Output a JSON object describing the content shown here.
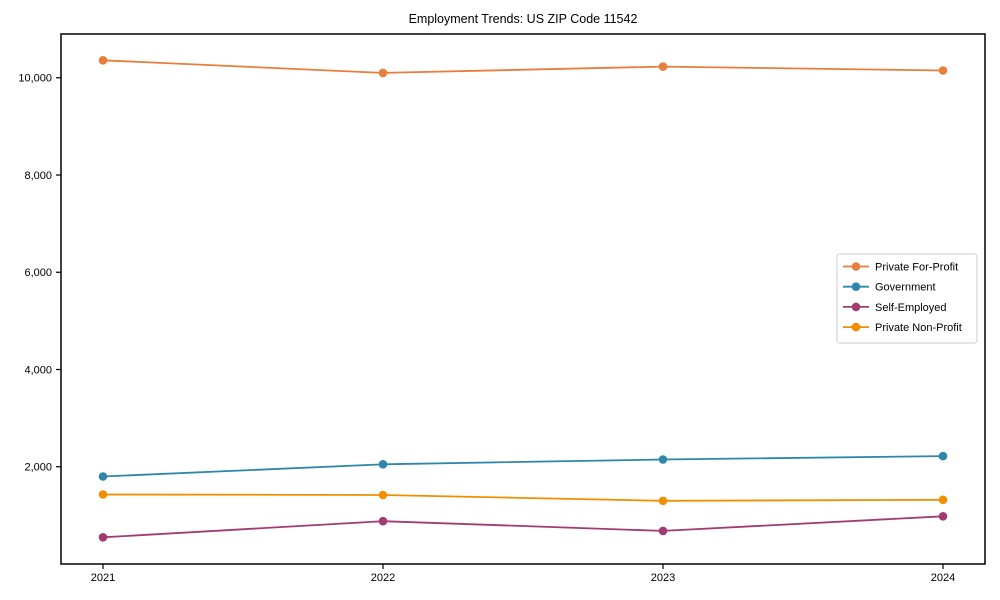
{
  "title": "Employment Trends: US ZIP Code 11542",
  "chart_data": {
    "type": "line",
    "title": "Employment Trends: US ZIP Code 11542",
    "xlabel": "",
    "ylabel": "",
    "categories": [
      "2021",
      "2022",
      "2023",
      "2024"
    ],
    "series": [
      {
        "name": "Private For-Profit",
        "color": "#e87d3c",
        "values": [
          10360,
          10100,
          10230,
          10150
        ]
      },
      {
        "name": "Government",
        "color": "#2e86ab",
        "values": [
          1800,
          2050,
          2150,
          2220
        ]
      },
      {
        "name": "Self-Employed",
        "color": "#a23b72",
        "values": [
          550,
          880,
          680,
          980
        ]
      },
      {
        "name": "Private Non-Profit",
        "color": "#f18f01",
        "values": [
          1430,
          1420,
          1300,
          1320
        ]
      }
    ],
    "ylim": [
      0,
      10900
    ],
    "y_ticks": [
      2000,
      4000,
      6000,
      8000,
      10000
    ],
    "y_tick_labels": [
      "2,000",
      "4,000",
      "6,000",
      "8,000",
      "10,000"
    ],
    "grid": false,
    "legend_position": "center right",
    "marker": "circle"
  },
  "colors": {
    "background": "#ffffff",
    "axis": "#000000",
    "legend_border": "#cccccc",
    "legend_background": "#ffffff"
  }
}
